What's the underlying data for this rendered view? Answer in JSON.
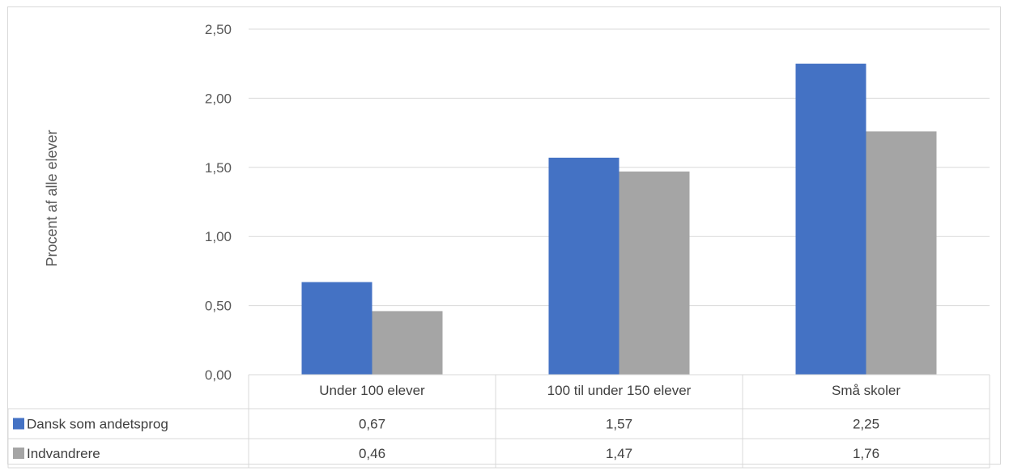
{
  "chart_data": {
    "type": "bar",
    "title": "",
    "ylabel": "Procent af alle elever",
    "ylim": [
      0,
      2.5
    ],
    "yticks": [
      "0,00",
      "0,50",
      "1,00",
      "1,50",
      "2,00",
      "2,50"
    ],
    "grid": true,
    "categories": [
      "Under 100 elever",
      "100 til under 150 elever",
      "Små skoler"
    ],
    "series": [
      {
        "name": "Dansk som andetsprog",
        "color": "#4472c4",
        "values": [
          0.67,
          1.57,
          2.25
        ],
        "labels": [
          "0,67",
          "1,57",
          "2,25"
        ]
      },
      {
        "name": "Indvandrere",
        "color": "#a5a5a5",
        "values": [
          0.46,
          1.47,
          1.76
        ],
        "labels": [
          "0,46",
          "1,47",
          "1,76"
        ]
      }
    ],
    "legend": "data-table"
  }
}
